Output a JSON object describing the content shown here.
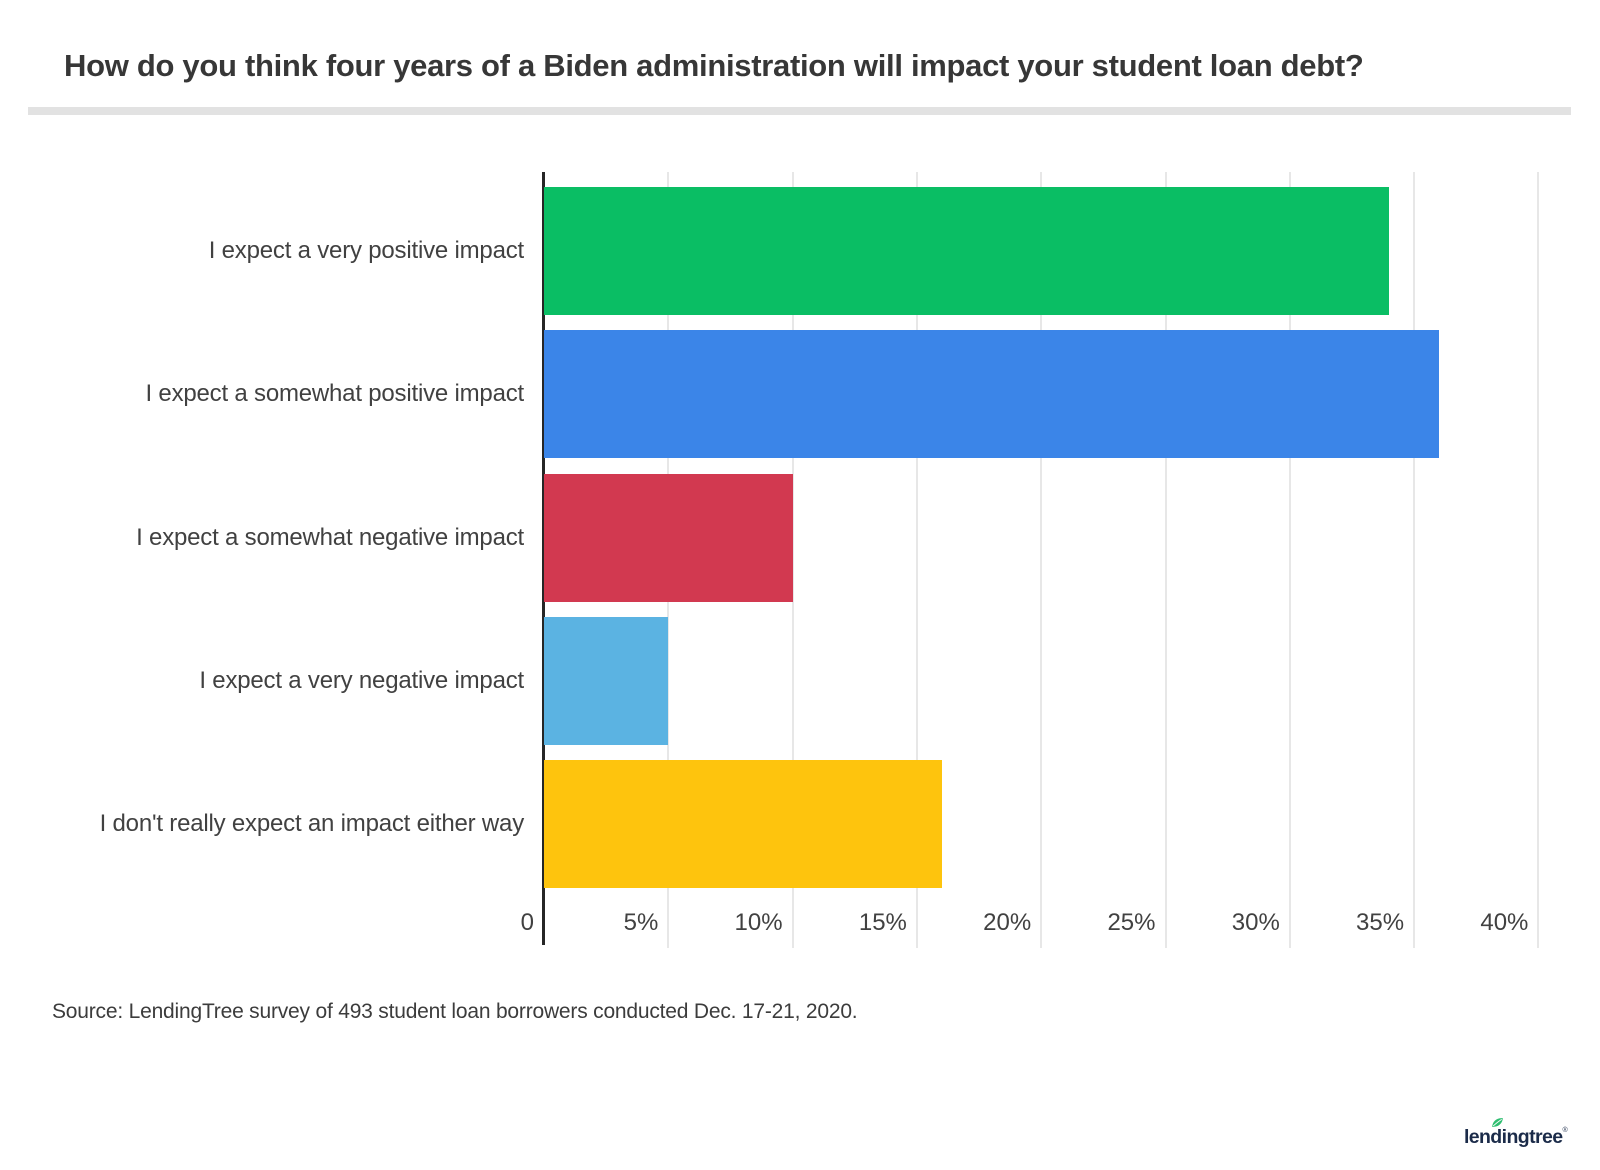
{
  "title": "How do you think four years of a Biden administration will impact your student loan debt?",
  "source": "Source: LendingTree survey of 493 student loan borrowers conducted Dec. 17-21, 2020.",
  "brand": {
    "logo_text": "lendingtree",
    "registered_mark": "®",
    "navy": "#1b2b49",
    "leaf_green": "#2fbe71"
  },
  "chart_data": {
    "type": "bar",
    "orientation": "horizontal",
    "title": "How do you think four years of a Biden administration will impact your student loan debt?",
    "categories": [
      "I expect a very positive impact",
      "I expect a somewhat positive impact",
      "I expect a somewhat negative impact",
      "I expect a very negative impact",
      "I don't really expect an impact either way"
    ],
    "values": [
      34,
      36,
      10,
      5,
      16
    ],
    "unit": "%",
    "bar_colors": [
      "#0abe64",
      "#3b85e8",
      "#d23950",
      "#5bb3e2",
      "#fec40d"
    ],
    "x_axis": {
      "tick_labels": [
        "0",
        "5%",
        "10%",
        "15%",
        "20%",
        "25%",
        "30%",
        "35%",
        "40%"
      ],
      "tick_values": [
        0,
        5,
        10,
        15,
        20,
        25,
        30,
        35,
        40
      ],
      "range": [
        0,
        40.5
      ]
    },
    "grid": true,
    "legend": false,
    "axis_color": "#262626",
    "grid_color": "#e7e7e7"
  }
}
